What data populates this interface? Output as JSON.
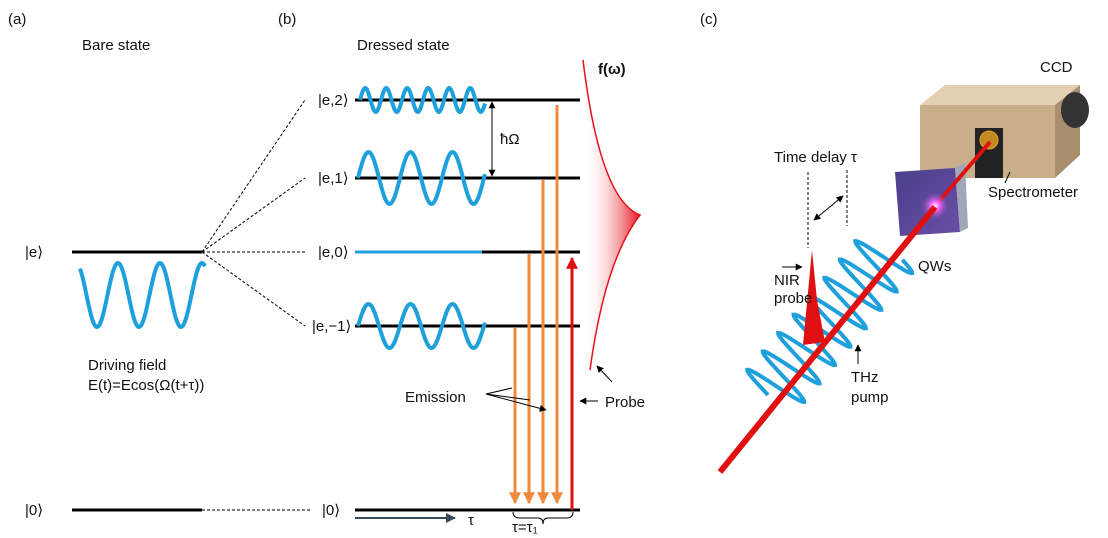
{
  "panel_a": {
    "label": "(a)",
    "title": "Bare state",
    "levels": [
      "|e⟩",
      "|0⟩"
    ],
    "field": [
      "Driving field",
      "E(t)=Ecos(Ω(t+τ))"
    ]
  },
  "panel_b": {
    "label": "(b)",
    "title": "Dressed state",
    "levels": [
      "|e,2⟩",
      "|e,1⟩",
      "|e,0⟩",
      "|e,−1⟩",
      "|0⟩"
    ],
    "spacing": "ħΩ",
    "distribution": "f(ω)",
    "emission": "Emission",
    "probe": "Probe",
    "delay": "τ",
    "delay_value": "τ=τ₁"
  },
  "panel_c": {
    "label": "(c)",
    "ccd": "CCD",
    "time_delay": "Time delay τ",
    "spectrometer": "Spectrometer",
    "qws": "QWs",
    "nir_probe": [
      "NIR",
      "probe"
    ],
    "thz_pump": [
      "THz",
      "pump"
    ]
  }
}
